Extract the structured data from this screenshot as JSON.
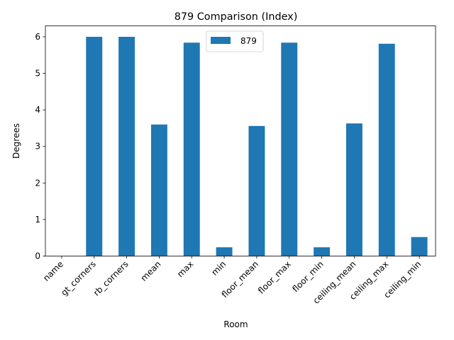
{
  "chart_data": {
    "type": "bar",
    "title": "879 Comparison (Index)",
    "xlabel": "Room",
    "ylabel": "Degrees",
    "categories": [
      "name",
      "gt_corners",
      "rb_corners",
      "mean",
      "max",
      "min",
      "floor_mean",
      "floor_max",
      "floor_min",
      "ceiling_mean",
      "ceiling_max",
      "ceiling_min"
    ],
    "series": [
      {
        "name": "879",
        "color": "#1f77b4",
        "values": [
          0,
          6.0,
          6.0,
          3.6,
          5.84,
          0.24,
          3.56,
          5.84,
          0.24,
          3.63,
          5.81,
          0.52
        ]
      }
    ],
    "ylim": [
      0,
      6.3
    ],
    "yticks": [
      "0",
      "1",
      "2",
      "3",
      "4",
      "5",
      "6"
    ],
    "grid": false,
    "legend_position": "upper center"
  }
}
